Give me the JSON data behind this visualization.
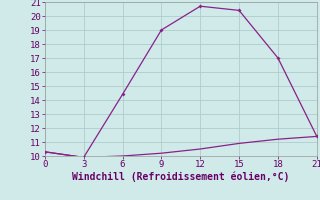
{
  "x": [
    0,
    3,
    6,
    9,
    12,
    15,
    18,
    21
  ],
  "y_upper": [
    10.3,
    9.9,
    14.4,
    19.0,
    20.7,
    20.4,
    17.0,
    11.4
  ],
  "y_lower": [
    10.3,
    9.9,
    10.0,
    10.2,
    10.5,
    10.9,
    11.2,
    11.4
  ],
  "line_color": "#882288",
  "bg_color": "#d0eaea",
  "grid_color": "#b0cccc",
  "xlabel": "Windchill (Refroidissement éolien,°C)",
  "xlim": [
    0,
    21
  ],
  "ylim": [
    10,
    21
  ],
  "yticks": [
    10,
    11,
    12,
    13,
    14,
    15,
    16,
    17,
    18,
    19,
    20,
    21
  ],
  "xticks": [
    0,
    3,
    6,
    9,
    12,
    15,
    18,
    21
  ],
  "xlabel_fontsize": 7.0,
  "tick_fontsize": 6.5,
  "tick_color": "#660066",
  "xlabel_color": "#660066"
}
